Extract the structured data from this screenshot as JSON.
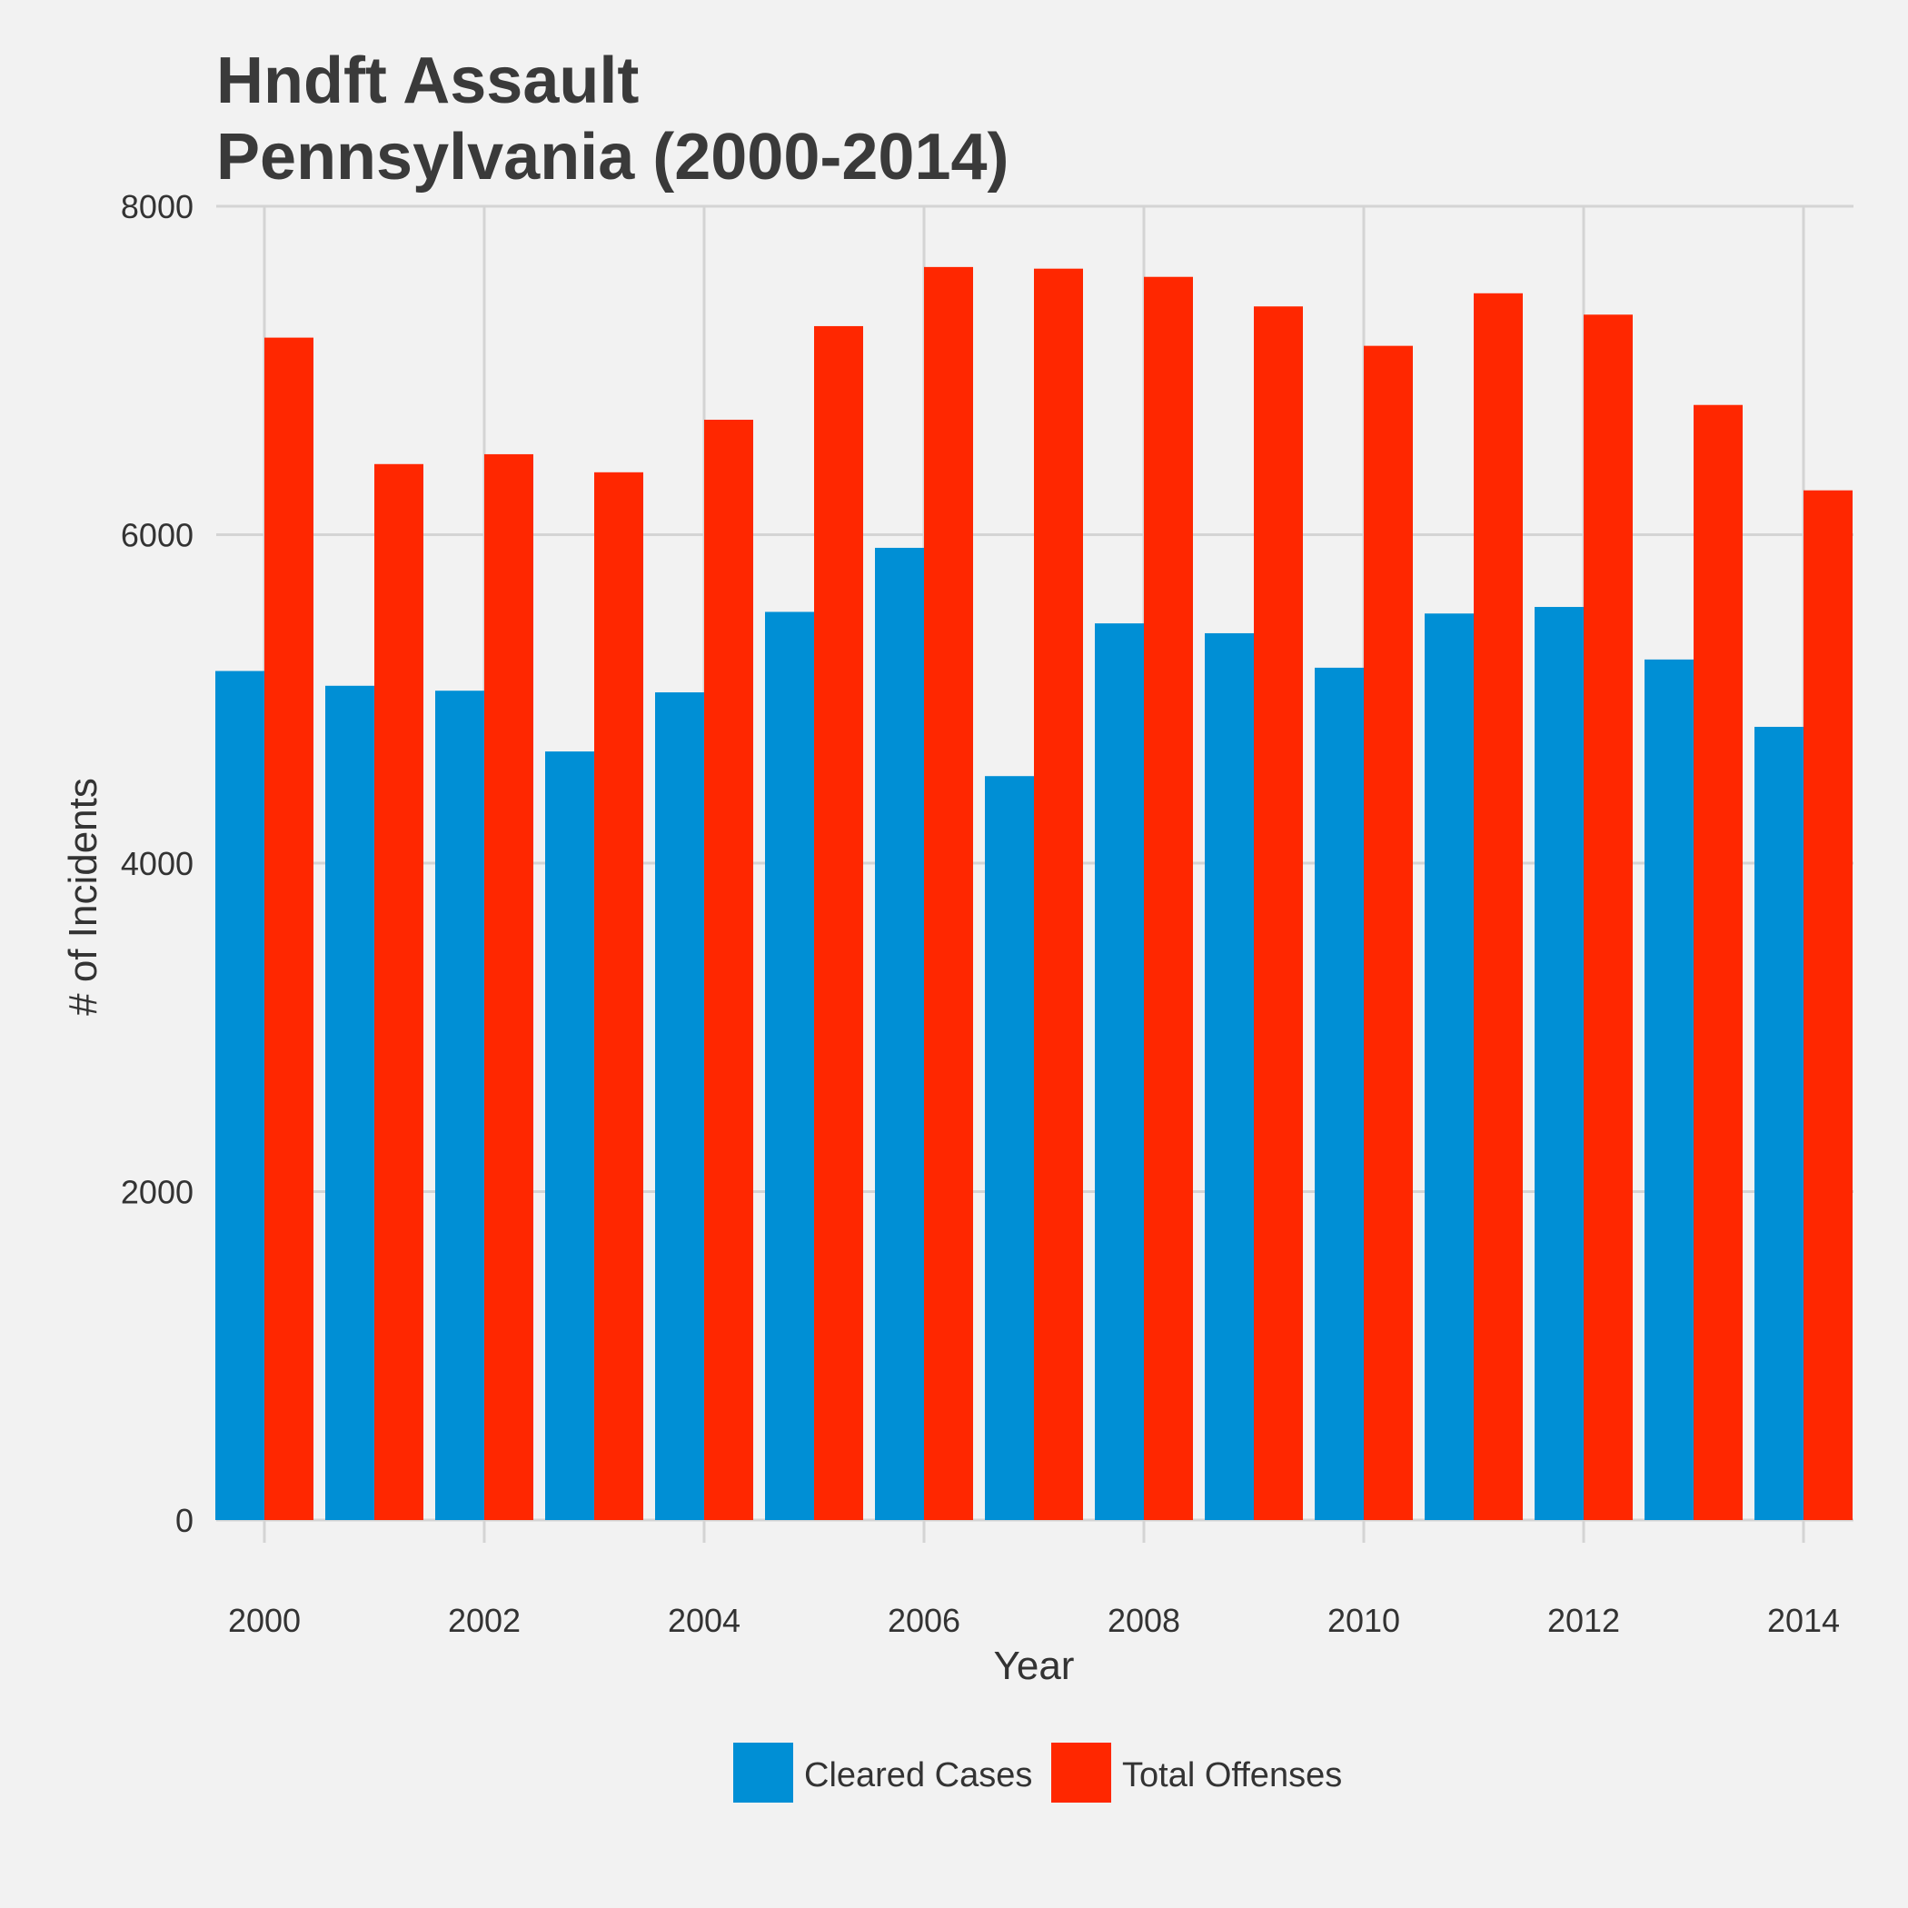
{
  "chart_data": {
    "type": "bar",
    "title_line1": "Hndft Assault",
    "title_line2": "Pennsylvania (2000-2014)",
    "xlabel": "Year",
    "ylabel": "# of Incidents",
    "ylim": [
      0,
      8000
    ],
    "y_ticks": [
      "0",
      "2000",
      "4000",
      "6000",
      "8000"
    ],
    "x_ticks": [
      "2000",
      "2002",
      "2004",
      "2006",
      "2008",
      "2010",
      "2012",
      "2014"
    ],
    "categories": [
      "2000",
      "2001",
      "2002",
      "2003",
      "2004",
      "2005",
      "2006",
      "2007",
      "2008",
      "2009",
      "2010",
      "2011",
      "2012",
      "2013",
      "2014"
    ],
    "series": [
      {
        "name": "Cleared Cases",
        "color": "#008fd5",
        "values": [
          5170,
          5080,
          5050,
          4680,
          5040,
          5530,
          5920,
          4530,
          5460,
          5400,
          5190,
          5520,
          5560,
          5240,
          4830
        ]
      },
      {
        "name": "Total Offenses",
        "color": "#ff2700",
        "values": [
          7200,
          6430,
          6490,
          6380,
          6700,
          7270,
          7630,
          7620,
          7570,
          7390,
          7150,
          7470,
          7340,
          6790,
          6270
        ]
      }
    ],
    "grid": true,
    "legend_position": "bottom"
  }
}
